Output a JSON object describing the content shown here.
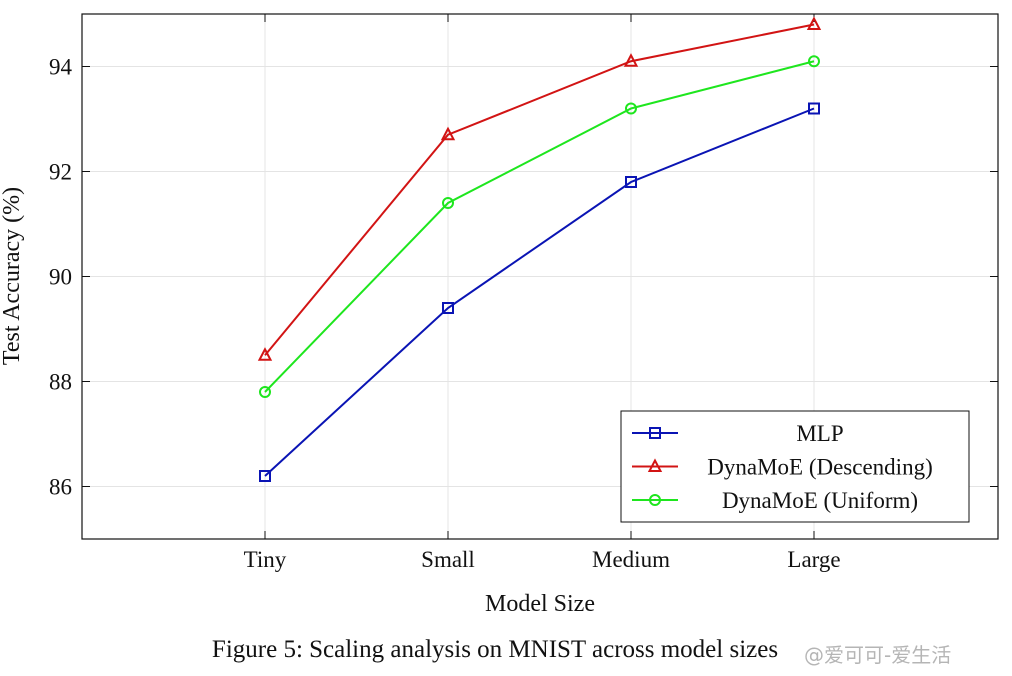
{
  "chart_data": {
    "type": "line",
    "title": "",
    "xlabel": "Model Size",
    "ylabel": "Test Accuracy (%)",
    "categories": [
      "Tiny",
      "Small",
      "Medium",
      "Large"
    ],
    "ylim": [
      85,
      95
    ],
    "yticks": [
      86,
      88,
      90,
      92,
      94
    ],
    "grid": true,
    "legend_position": "bottom-right",
    "series": [
      {
        "name": "MLP",
        "color": "#0a14b4",
        "marker": "square",
        "values": [
          86.2,
          89.4,
          91.8,
          93.2
        ]
      },
      {
        "name": "DynaMoE (Descending)",
        "color": "#d21414",
        "marker": "triangle",
        "values": [
          88.5,
          92.7,
          94.1,
          94.8
        ]
      },
      {
        "name": "DynaMoE (Uniform)",
        "color": "#1ee61e",
        "marker": "circle",
        "values": [
          87.8,
          91.4,
          93.2,
          94.1
        ]
      }
    ]
  },
  "caption": "Figure 5: Scaling analysis on MNIST across model sizes",
  "watermark": "@爱可可-爱生活"
}
